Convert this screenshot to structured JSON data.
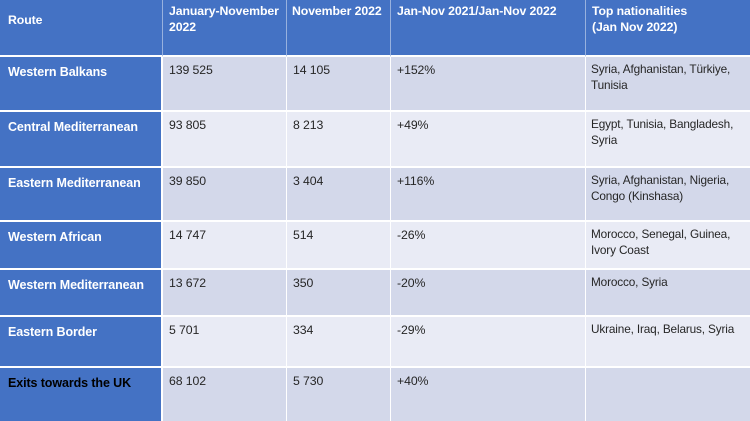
{
  "colors": {
    "header_blue": "#4472C4",
    "band_dark": "#D3D8EA",
    "band_light": "#E9EBF5",
    "header_text": "#FFFFFF",
    "body_text": "#262626",
    "last_row_route_text": "#000000"
  },
  "table": {
    "columns": [
      {
        "label": "Route"
      },
      {
        "label": "January-November 2022"
      },
      {
        "label": "November 2022"
      },
      {
        "label": "Jan-Nov 2021/Jan-Nov 2022"
      },
      {
        "label": "Top nationalities\n(Jan Nov 2022)"
      }
    ],
    "rows": [
      {
        "route": "Western Balkans",
        "jan_nov_2022": "139 525",
        "nov_2022": "14 105",
        "change": "+152%",
        "nationalities": "Syria, Afghanistan, Türkiye, Tunisia",
        "route_black_text": false
      },
      {
        "route": "Central Mediterranean",
        "jan_nov_2022": "93 805",
        "nov_2022": "8 213",
        "change": "+49%",
        "nationalities": "Egypt, Tunisia, Bangladesh, Syria",
        "route_black_text": false
      },
      {
        "route": "Eastern Mediterranean",
        "jan_nov_2022": "39 850",
        "nov_2022": "3 404",
        "change": "+116%",
        "nationalities": "Syria, Afghanistan, Nigeria, Congo (Kinshasa)",
        "route_black_text": false
      },
      {
        "route": "Western African",
        "jan_nov_2022": "14 747",
        "nov_2022": "514",
        "change": "-26%",
        "nationalities": "Morocco, Senegal, Guinea, Ivory Coast",
        "route_black_text": false
      },
      {
        "route": "Western Mediterranean",
        "jan_nov_2022": "13 672",
        "nov_2022": "350",
        "change": "-20%",
        "nationalities": "Morocco, Syria",
        "route_black_text": false
      },
      {
        "route": "Eastern Border",
        "jan_nov_2022": "5 701",
        "nov_2022": "334",
        "change": "-29%",
        "nationalities": "Ukraine, Iraq, Belarus, Syria",
        "route_black_text": false
      },
      {
        "route": "Exits towards the UK",
        "jan_nov_2022": "68 102",
        "nov_2022": "5 730",
        "change": "+40%",
        "nationalities": "",
        "route_black_text": true
      }
    ]
  }
}
